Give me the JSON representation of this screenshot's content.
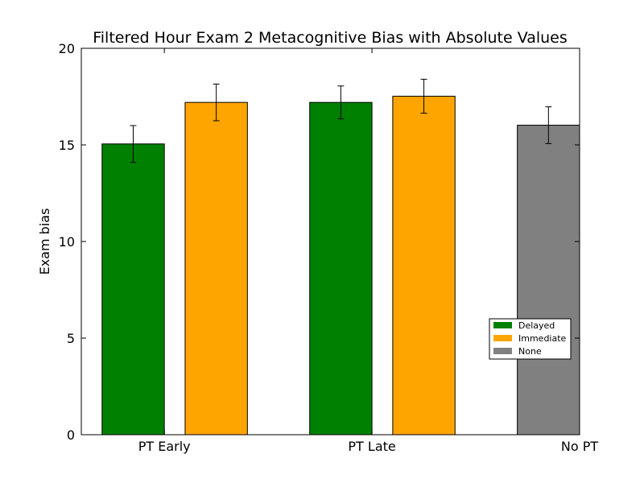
{
  "chart_data": {
    "type": "bar",
    "title": "Filtered Hour Exam 2 Metacognitive Bias with Absolute Values",
    "xlabel": "",
    "ylabel": "Exam bias",
    "ylim": [
      0,
      20
    ],
    "yticks": [
      0,
      5,
      10,
      15,
      20
    ],
    "categories": [
      "PT Early",
      "PT Late",
      "No PT"
    ],
    "series": [
      {
        "name": "Delayed",
        "color": "#008000",
        "values": [
          15.05,
          17.2,
          null
        ],
        "errors": [
          0.95,
          0.85,
          null
        ]
      },
      {
        "name": "Immediate",
        "color": "#FFA500",
        "values": [
          17.2,
          17.52,
          null
        ],
        "errors": [
          0.95,
          0.88,
          null
        ]
      },
      {
        "name": "None",
        "color": "#808080",
        "values": [
          null,
          null,
          16.02
        ],
        "errors": [
          null,
          null,
          0.95
        ]
      }
    ],
    "grid": false,
    "legend_position": "lower-right"
  }
}
